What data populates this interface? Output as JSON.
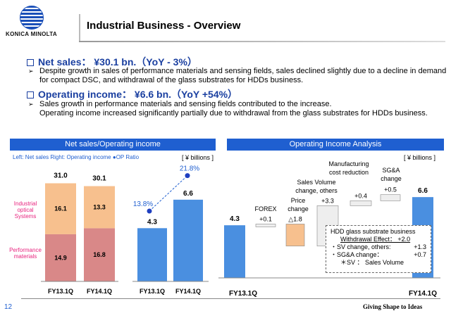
{
  "logo": {
    "text": "KONICA MINOLTA",
    "icon": "globe-logo-icon"
  },
  "slide_title": "Industrial Business - Overview",
  "net_sales": {
    "heading": "Net sales： ¥30.1 bn.（YoY - 3%）",
    "bullet": "Despite growth in sales of performance materials and sensing fields, sales declined slightly due to a decline in demand for compact DSC, and withdrawal of the glass substrates for HDDs business."
  },
  "operating_income": {
    "heading": "Operating income： ¥6.6 bn.（YoY +54%）",
    "bullet_line1": "Sales growth in performance materials and sensing fields contributed to the increase.",
    "bullet_line2": "Operating income increased significantly  partially due to withdrawal from the glass substrates for HDDs business."
  },
  "left_panel": {
    "header": "Net sales/Operating income",
    "legend": "Left: Net sales Right: Operating income",
    "legend_op": "OP Ratio",
    "unit": "[ ¥ billions ]",
    "cat_industrial": "Industrial optical Systems",
    "cat_performance": "Performance materials"
  },
  "right_panel": {
    "header": "Operating Income Analysis",
    "unit": "[ ¥ billions ]",
    "hdd_box": {
      "title": "HDD glass substrate business",
      "line1": "Withdrawal Effect： +2.0",
      "line2_label": "・SV change, others:",
      "line2_val": "+1.3",
      "line3_label": "・SG&A change：",
      "line3_val": "+0.7",
      "line4": "＊SV ： Sales Volume"
    }
  },
  "chart_data": [
    {
      "type": "bar",
      "stacked": true,
      "categories": [
        "FY13.1Q",
        "FY14.1Q"
      ],
      "series": [
        {
          "name": "Performance materials",
          "values": [
            14.9,
            16.8
          ],
          "color": "#d98888"
        },
        {
          "name": "Industrial optical Systems",
          "values": [
            16.1,
            13.3
          ],
          "color": "#f7c08e"
        }
      ],
      "totals": [
        "31.0",
        "30.1"
      ]
    },
    {
      "type": "bar",
      "categories": [
        "FY13.1Q",
        "FY14.1Q"
      ],
      "values": [
        4.3,
        6.6
      ],
      "value_labels": [
        "4.3",
        "6.6"
      ],
      "color": "#4a8fe0",
      "op_ratio": {
        "values": [
          13.8,
          21.8
        ],
        "labels": [
          "13.8%",
          "21.8%"
        ]
      }
    },
    {
      "type": "waterfall",
      "steps": [
        {
          "label": "FY13.1Q",
          "value": 4.3,
          "text": "4.3"
        },
        {
          "label": "FOREX",
          "value": 0.1,
          "text": "+0.1"
        },
        {
          "label": "Price change",
          "value": -1.8,
          "text": "△1.8"
        },
        {
          "label": "Sales Volume change, others",
          "value": 3.3,
          "text": "+3.3"
        },
        {
          "label": "Manufacturing cost reduction",
          "value": 0.4,
          "text": "+0.4"
        },
        {
          "label": "SG&A change",
          "value": 0.5,
          "text": "+0.5"
        },
        {
          "label": "FY14.1Q",
          "value": 6.6,
          "text": "6.6"
        }
      ]
    }
  ],
  "footer": {
    "page": "12",
    "tagline": "Giving Shape to Ideas"
  },
  "colors": {
    "accent": "#1f5fd0",
    "heading": "#1a3fa0",
    "red_label": "#e8237e"
  }
}
